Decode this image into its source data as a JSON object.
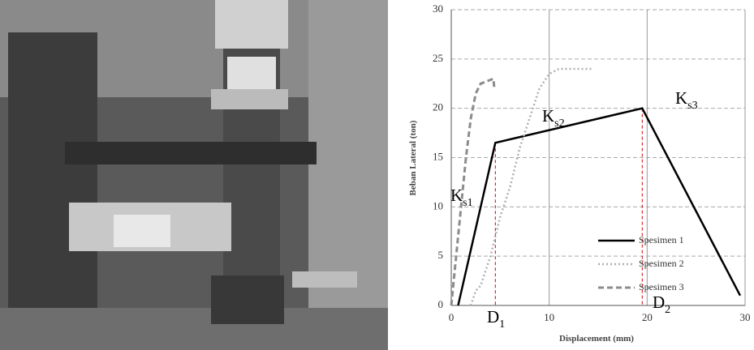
{
  "chart_data": {
    "type": "line",
    "x_label": "Displacement (mm)",
    "y_label": "Beban Lateral (ton)",
    "xlim": [
      0,
      30
    ],
    "xticks": [
      0,
      10,
      20,
      30
    ],
    "ylim": [
      0,
      30
    ],
    "yticks": [
      0,
      5,
      10,
      15,
      20,
      25,
      30
    ],
    "grid": true,
    "legend": "lower right",
    "series": [
      {
        "name": "Spesimen 1",
        "color": "#000000",
        "style": "solid",
        "x": [
          0.7,
          4.5,
          19.5,
          29.5
        ],
        "values": [
          0,
          16.5,
          20,
          1
        ]
      },
      {
        "name": "Spesimen 2",
        "color": "#b0b0b0",
        "style": "dotted",
        "x": [
          2,
          2.5,
          3,
          4,
          5,
          6,
          7,
          8,
          9,
          10,
          11,
          14.5
        ],
        "values": [
          0,
          1.5,
          2,
          5,
          9,
          12,
          16,
          19,
          22,
          23.5,
          24,
          24
        ]
      },
      {
        "name": "Spesimen 3",
        "color": "#8c8c8c",
        "style": "dashed",
        "x": [
          0,
          0.5,
          1,
          1.5,
          2,
          2.5,
          3,
          4.3,
          4.4
        ],
        "values": [
          0,
          5,
          10,
          15,
          19,
          21.5,
          22.5,
          23,
          22
        ]
      }
    ],
    "annotations": [
      {
        "main": "K",
        "sub": "s1"
      },
      {
        "main": "K",
        "sub": "s2"
      },
      {
        "main": "K",
        "sub": "s3"
      },
      {
        "main": "D",
        "sub": "1"
      },
      {
        "main": "D",
        "sub": "2"
      }
    ],
    "markers": [
      {
        "x": 4.5,
        "y": 16.5,
        "color": "#d00000"
      },
      {
        "x": 19.5,
        "y": 20,
        "color": "#d00000"
      }
    ]
  }
}
